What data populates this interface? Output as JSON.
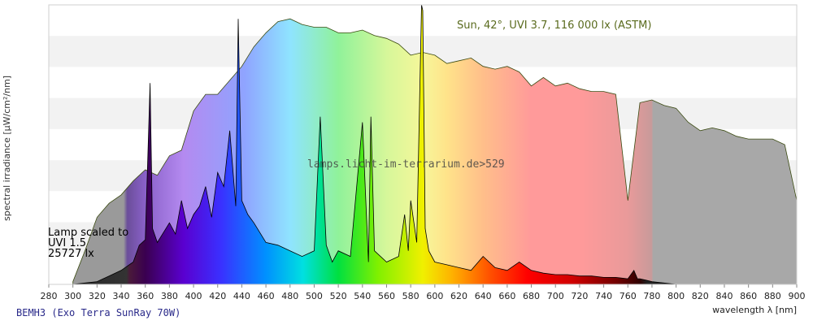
{
  "chart_data": {
    "type": "area",
    "title": "",
    "xlabel": "wavelength λ [nm]",
    "ylabel": "spectral irradiance [µW/cm²/nm]",
    "xlim": [
      280,
      900
    ],
    "ylim": [
      0,
      100
    ],
    "x_ticks": [
      280,
      300,
      320,
      340,
      360,
      380,
      400,
      420,
      440,
      460,
      480,
      500,
      520,
      540,
      560,
      580,
      600,
      620,
      640,
      660,
      680,
      700,
      720,
      740,
      760,
      780,
      800,
      820,
      840,
      860,
      880,
      900
    ],
    "y_ticks_labeled": false,
    "grid": "horizontal bands",
    "annotations": {
      "sun": "Sun, 42°, UVI 3.7, 116 000 lx (ASTM)",
      "lamp_line1": "Lamp scaled to",
      "lamp_line2": "UVI 1.5",
      "lamp_line3": "25727 lx",
      "watermark": "lamps.licht-im-terrarium.de>529"
    },
    "series": [
      {
        "name": "Sun, 42°, UVI 3.7, 116 000 lx (ASTM)",
        "x": [
          300,
          310,
          320,
          330,
          340,
          350,
          360,
          370,
          380,
          390,
          400,
          410,
          420,
          430,
          440,
          450,
          460,
          470,
          480,
          490,
          500,
          510,
          520,
          530,
          540,
          550,
          560,
          570,
          580,
          590,
          600,
          610,
          620,
          630,
          640,
          650,
          660,
          670,
          680,
          690,
          700,
          710,
          720,
          730,
          740,
          750,
          760,
          770,
          780,
          790,
          800,
          810,
          820,
          830,
          840,
          850,
          860,
          870,
          880,
          890,
          900
        ],
        "values": [
          1,
          12,
          24,
          29,
          32,
          37,
          41,
          39,
          46,
          48,
          62,
          68,
          68,
          73,
          78,
          85,
          90,
          94,
          95,
          93,
          92,
          92,
          90,
          90,
          91,
          89,
          88,
          86,
          82,
          83,
          82,
          79,
          80,
          81,
          78,
          77,
          78,
          76,
          71,
          74,
          71,
          72,
          70,
          69,
          69,
          68,
          30,
          65,
          66,
          64,
          63,
          58,
          55,
          56,
          55,
          53,
          52,
          52,
          52,
          50,
          30
        ]
      },
      {
        "name": "BEMH3 (Exo Terra SunRay 70W)",
        "x": [
          300,
          310,
          320,
          330,
          340,
          350,
          355,
          360,
          364,
          366,
          370,
          380,
          385,
          390,
          395,
          400,
          405,
          410,
          415,
          420,
          425,
          430,
          435,
          437,
          440,
          445,
          450,
          460,
          470,
          480,
          490,
          500,
          505,
          510,
          515,
          520,
          530,
          540,
          545,
          547,
          550,
          560,
          570,
          575,
          578,
          580,
          585,
          589,
          590,
          592,
          595,
          600,
          610,
          620,
          630,
          640,
          650,
          660,
          670,
          680,
          690,
          700,
          710,
          720,
          730,
          740,
          750,
          760,
          765,
          768,
          770,
          775,
          780,
          790,
          800
        ],
        "values": [
          0,
          0.5,
          1,
          3,
          5,
          8,
          14,
          16,
          72,
          20,
          15,
          22,
          18,
          30,
          20,
          25,
          28,
          35,
          24,
          40,
          35,
          55,
          28,
          95,
          30,
          25,
          22,
          15,
          14,
          12,
          10,
          12,
          60,
          14,
          8,
          12,
          10,
          58,
          8,
          60,
          12,
          8,
          10,
          25,
          12,
          30,
          15,
          100,
          98,
          20,
          12,
          8,
          7,
          6,
          5,
          10,
          6,
          5,
          8,
          5,
          4,
          3.5,
          3.5,
          3,
          3,
          2.5,
          2.5,
          2,
          5,
          2,
          2,
          1.5,
          1,
          0.5,
          0
        ]
      }
    ]
  },
  "footer": {
    "lamp_name": "BEMH3 (Exo Terra SunRay 70W)"
  }
}
